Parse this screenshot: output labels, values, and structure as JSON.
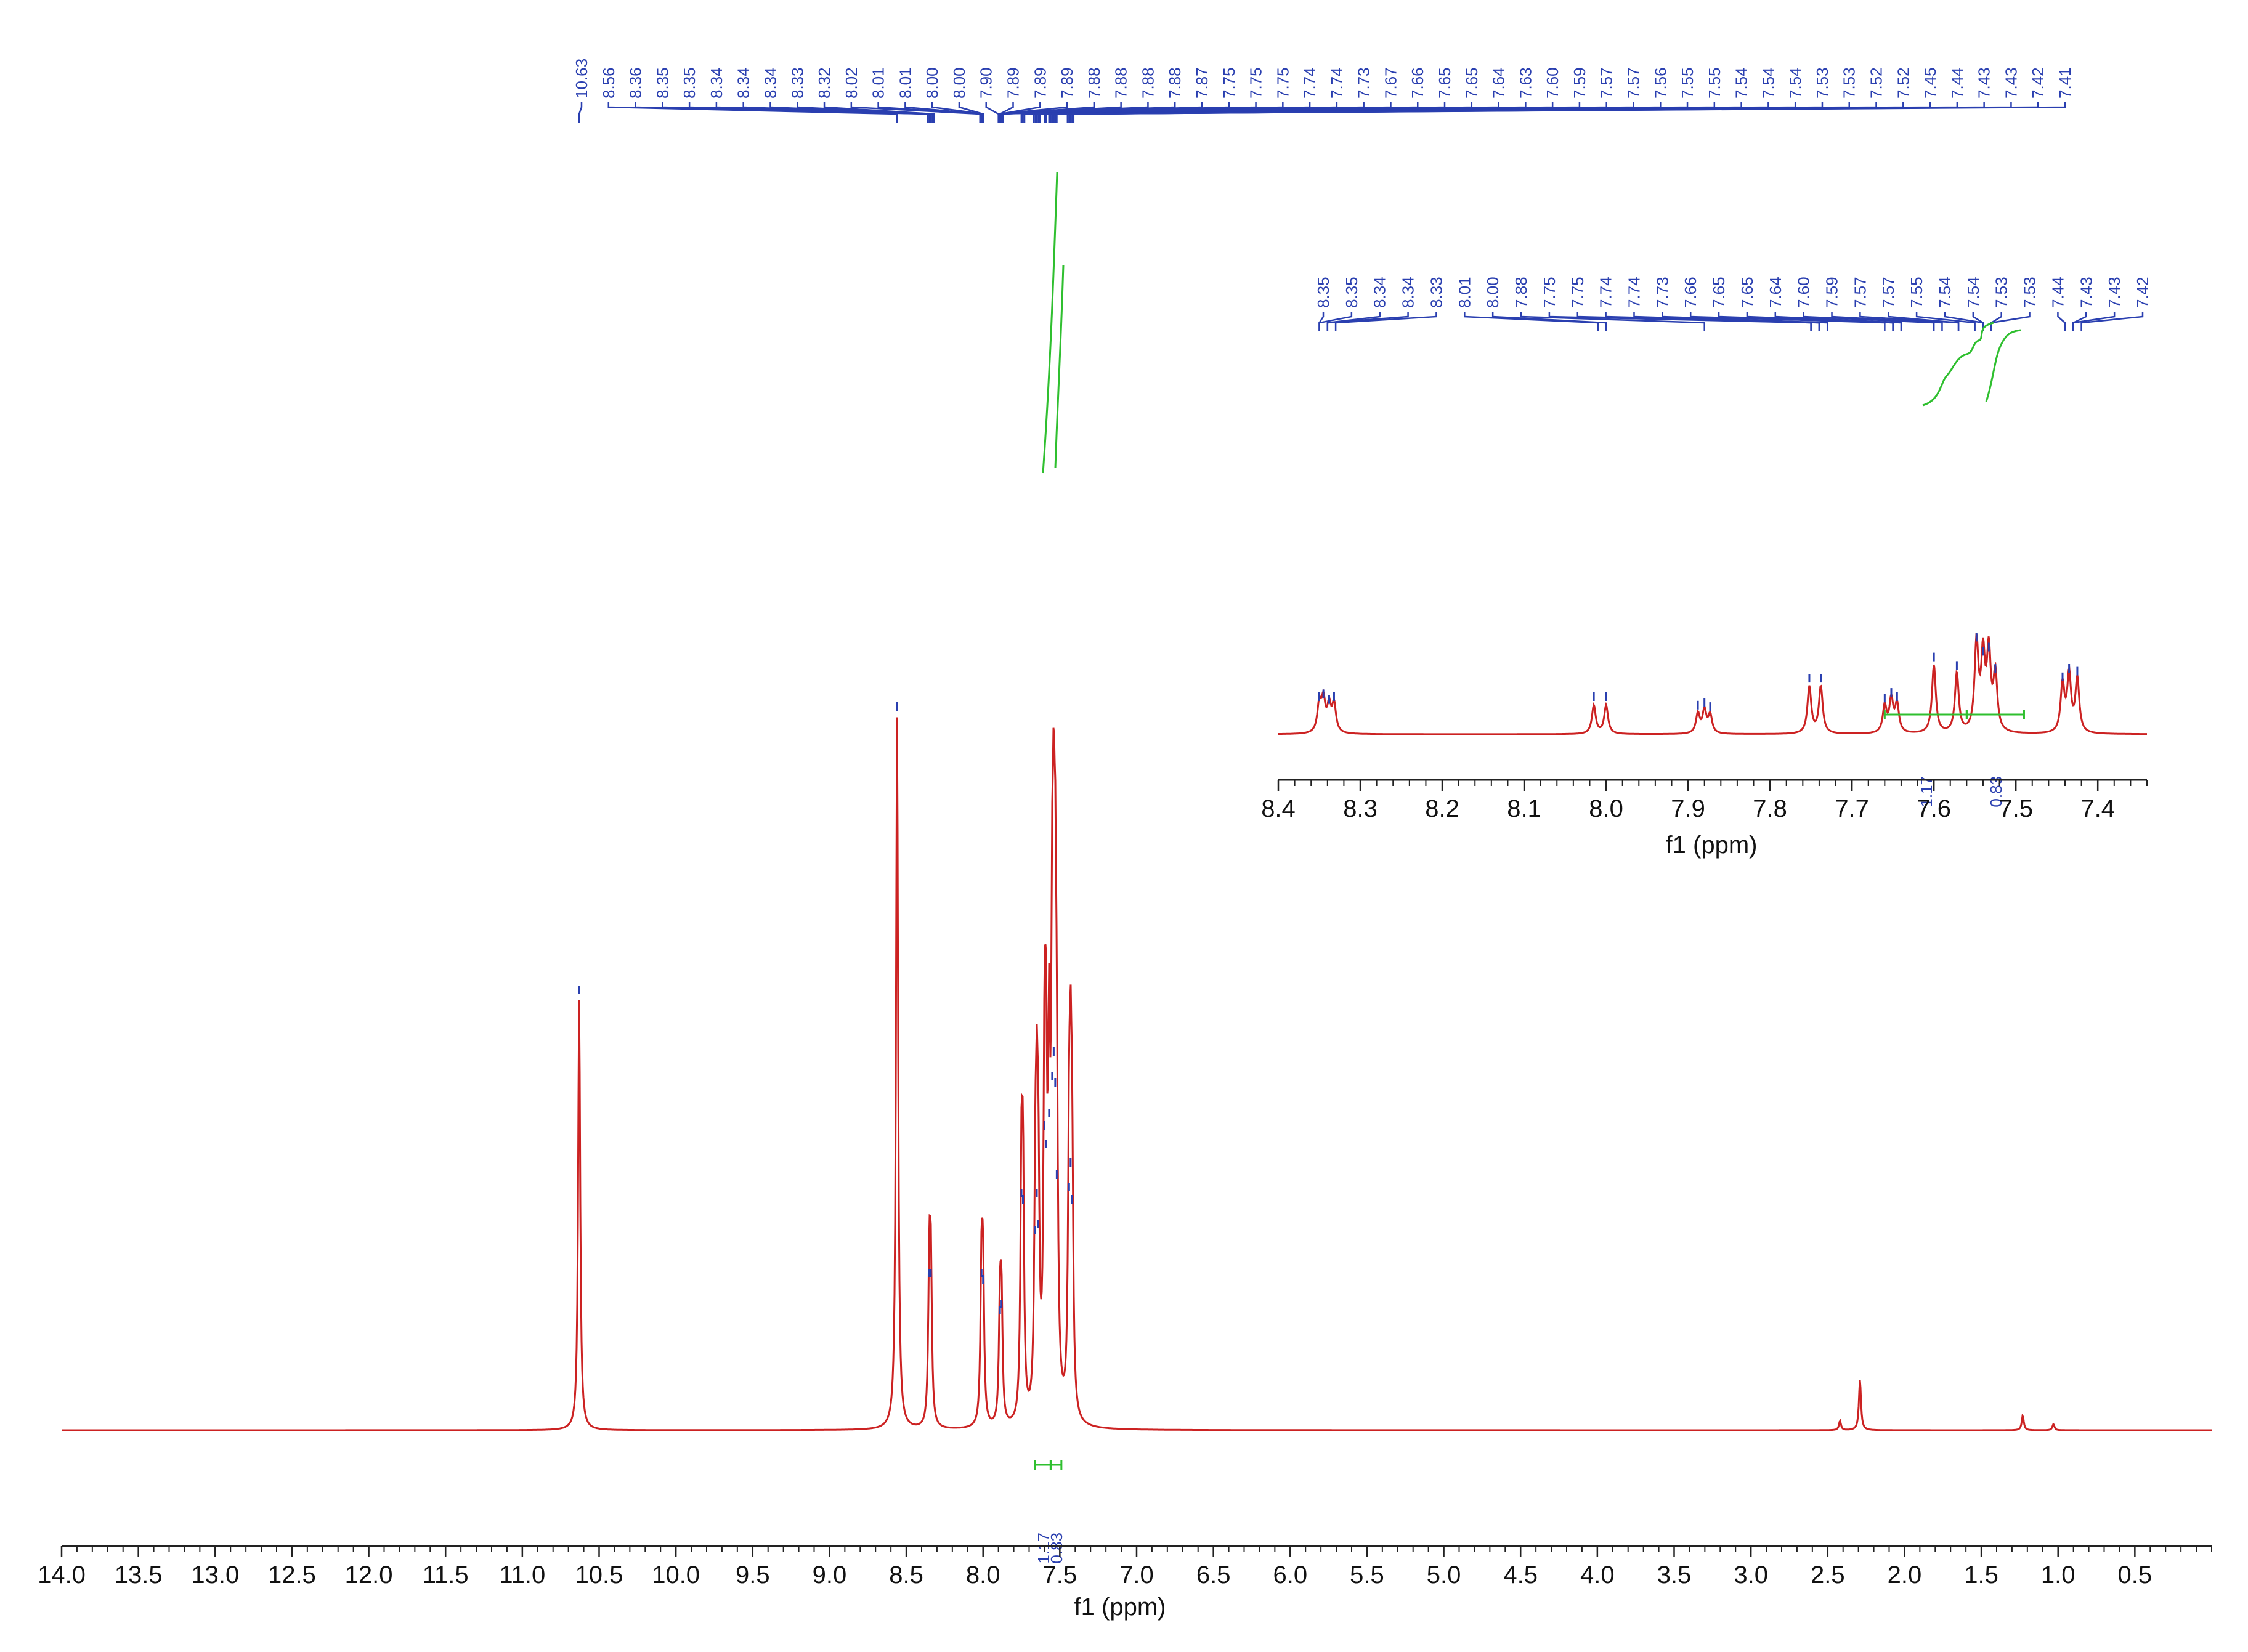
{
  "colors": {
    "spectrum": "#cc2222",
    "peak_labels": "#2a3fb0",
    "integral": "#2fbf2f",
    "axis": "#222222"
  },
  "chart_data": [
    {
      "type": "line",
      "xlabel": "f1 (ppm)",
      "xlim": [
        14.0,
        0.0
      ],
      "x_reversed": true,
      "x_ticks": [
        "14.0",
        "13.5",
        "13.0",
        "12.5",
        "12.0",
        "11.5",
        "11.0",
        "10.5",
        "10.0",
        "9.5",
        "9.0",
        "8.5",
        "8.0",
        "7.5",
        "7.0",
        "6.5",
        "6.0",
        "5.5",
        "5.0",
        "4.5",
        "4.0",
        "3.5",
        "3.0",
        "2.5",
        "2.0",
        "1.5",
        "1.0",
        "0.5"
      ],
      "peak_labels": [
        "10.63",
        "8.56",
        "8.36",
        "8.35",
        "8.35",
        "8.34",
        "8.34",
        "8.34",
        "8.33",
        "8.32",
        "8.02",
        "8.01",
        "8.01",
        "8.00",
        "8.00",
        "7.90",
        "7.89",
        "7.89",
        "7.89",
        "7.88",
        "7.88",
        "7.88",
        "7.88",
        "7.87",
        "7.75",
        "7.75",
        "7.75",
        "7.74",
        "7.74",
        "7.73",
        "7.67",
        "7.66",
        "7.65",
        "7.65",
        "7.64",
        "7.63",
        "7.60",
        "7.59",
        "7.57",
        "7.57",
        "7.56",
        "7.55",
        "7.55",
        "7.54",
        "7.54",
        "7.54",
        "7.53",
        "7.53",
        "7.52",
        "7.52",
        "7.45",
        "7.44",
        "7.43",
        "7.43",
        "7.42",
        "7.41"
      ],
      "integrals": [
        {
          "label": "1.17",
          "range": [
            7.66,
            7.56
          ]
        },
        {
          "label": "0.83",
          "range": [
            7.56,
            7.49
          ]
        }
      ],
      "peaks": [
        {
          "ppm": 10.63,
          "height": 0.7
        },
        {
          "ppm": 8.56,
          "height": 1.16
        },
        {
          "ppm": 8.35,
          "height": 0.24
        },
        {
          "ppm": 8.34,
          "height": 0.24
        },
        {
          "ppm": 8.01,
          "height": 0.24
        },
        {
          "ppm": 8.0,
          "height": 0.23
        },
        {
          "ppm": 7.89,
          "height": 0.18
        },
        {
          "ppm": 7.88,
          "height": 0.19
        },
        {
          "ppm": 7.75,
          "height": 0.37
        },
        {
          "ppm": 7.74,
          "height": 0.36
        },
        {
          "ppm": 7.66,
          "height": 0.31
        },
        {
          "ppm": 7.65,
          "height": 0.37
        },
        {
          "ppm": 7.64,
          "height": 0.32
        },
        {
          "ppm": 7.6,
          "height": 0.48
        },
        {
          "ppm": 7.59,
          "height": 0.45
        },
        {
          "ppm": 7.57,
          "height": 0.5
        },
        {
          "ppm": 7.55,
          "height": 0.56
        },
        {
          "ppm": 7.54,
          "height": 0.6
        },
        {
          "ppm": 7.53,
          "height": 0.55
        },
        {
          "ppm": 7.52,
          "height": 0.4
        },
        {
          "ppm": 7.44,
          "height": 0.38
        },
        {
          "ppm": 7.43,
          "height": 0.42
        },
        {
          "ppm": 7.42,
          "height": 0.36
        },
        {
          "ppm": 2.42,
          "height": 0.015
        },
        {
          "ppm": 2.29,
          "height": 0.082
        },
        {
          "ppm": 1.23,
          "height": 0.024
        },
        {
          "ppm": 1.03,
          "height": 0.01
        }
      ]
    },
    {
      "type": "line",
      "inset": true,
      "xlabel": "f1 (ppm)",
      "xlim": [
        8.4,
        7.34
      ],
      "x_reversed": true,
      "x_ticks": [
        "8.4",
        "8.3",
        "8.2",
        "8.1",
        "8.0",
        "7.9",
        "7.8",
        "7.7",
        "7.6",
        "7.5",
        "7.4"
      ],
      "peak_labels": [
        "8.35",
        "8.35",
        "8.34",
        "8.34",
        "8.33",
        "8.01",
        "8.00",
        "7.88",
        "7.75",
        "7.75",
        "7.74",
        "7.74",
        "7.73",
        "7.66",
        "7.65",
        "7.65",
        "7.64",
        "7.60",
        "7.59",
        "7.57",
        "7.57",
        "7.55",
        "7.54",
        "7.54",
        "7.53",
        "7.53",
        "7.44",
        "7.43",
        "7.43",
        "7.42"
      ],
      "integrals": [
        {
          "label": "1.17",
          "range": [
            7.66,
            7.56
          ]
        },
        {
          "label": "0.83",
          "range": [
            7.56,
            7.49
          ]
        }
      ],
      "peaks": [
        {
          "ppm": 8.35,
          "height": 0.2
        },
        {
          "ppm": 8.345,
          "height": 0.22
        },
        {
          "ppm": 8.338,
          "height": 0.18
        },
        {
          "ppm": 8.332,
          "height": 0.2
        },
        {
          "ppm": 8.015,
          "height": 0.2
        },
        {
          "ppm": 8.0,
          "height": 0.2
        },
        {
          "ppm": 7.888,
          "height": 0.14
        },
        {
          "ppm": 7.88,
          "height": 0.16
        },
        {
          "ppm": 7.873,
          "height": 0.13
        },
        {
          "ppm": 7.752,
          "height": 0.33
        },
        {
          "ppm": 7.738,
          "height": 0.33
        },
        {
          "ppm": 7.66,
          "height": 0.19
        },
        {
          "ppm": 7.652,
          "height": 0.23
        },
        {
          "ppm": 7.645,
          "height": 0.2
        },
        {
          "ppm": 7.6,
          "height": 0.48
        },
        {
          "ppm": 7.572,
          "height": 0.42
        },
        {
          "ppm": 7.548,
          "height": 0.62
        },
        {
          "ppm": 7.54,
          "height": 0.52
        },
        {
          "ppm": 7.533,
          "height": 0.55
        },
        {
          "ppm": 7.525,
          "height": 0.4
        },
        {
          "ppm": 7.443,
          "height": 0.34
        },
        {
          "ppm": 7.435,
          "height": 0.4
        },
        {
          "ppm": 7.425,
          "height": 0.38
        }
      ]
    }
  ]
}
